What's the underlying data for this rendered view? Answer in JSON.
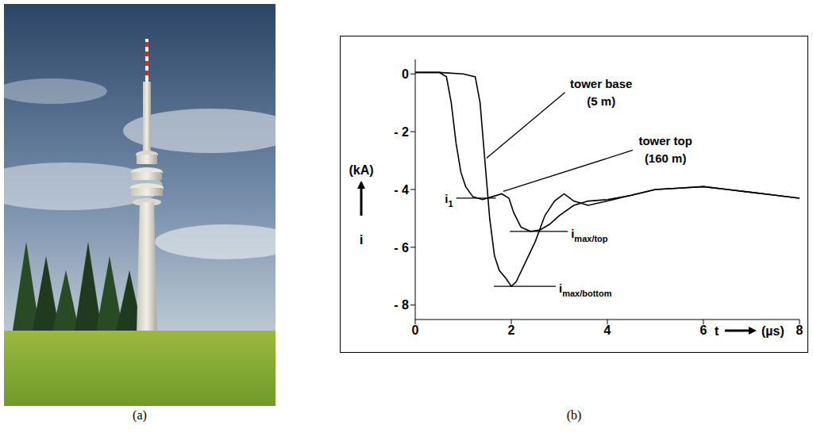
{
  "captions": [
    "(a)",
    "(b)"
  ],
  "chart_data": {
    "type": "line",
    "xlabel": "t",
    "xunit": "(µs)",
    "ylabel": "i",
    "yunit": "(kA)",
    "xlim": [
      0,
      8
    ],
    "xticks": [
      0,
      2,
      4,
      6,
      8
    ],
    "ylim": [
      -8.5,
      0.5
    ],
    "yticks": [
      0,
      {
        "value": -2,
        "label": "- 2"
      },
      {
        "value": -4,
        "label": "- 4"
      },
      {
        "value": -6,
        "label": "- 6"
      },
      {
        "value": -8,
        "label": "- 8"
      }
    ],
    "grid": false,
    "series": [
      {
        "name": "tower base (5 m)",
        "color": "#000000",
        "x": [
          0,
          0.5,
          1.0,
          1.25,
          1.35,
          1.45,
          1.55,
          1.65,
          1.75,
          1.9,
          2.0,
          2.1,
          2.3,
          2.5,
          2.7,
          2.9,
          3.1,
          3.3,
          3.6,
          4.0,
          4.5,
          5.0,
          5.5,
          6.0,
          6.5,
          7.0,
          7.5,
          8.0
        ],
        "values": [
          0.05,
          0.05,
          0.0,
          -0.1,
          -1.0,
          -3.0,
          -5.0,
          -6.3,
          -6.8,
          -7.1,
          -7.35,
          -7.2,
          -6.5,
          -5.8,
          -4.9,
          -4.4,
          -4.15,
          -4.4,
          -4.55,
          -4.4,
          -4.2,
          -4.0,
          -3.95,
          -3.9,
          -4.0,
          -4.1,
          -4.2,
          -4.3
        ]
      },
      {
        "name": "tower top (160 m)",
        "color": "#000000",
        "x": [
          0,
          0.5,
          0.65,
          0.75,
          0.85,
          0.95,
          1.05,
          1.2,
          1.4,
          1.6,
          1.8,
          1.95,
          2.05,
          2.2,
          2.4,
          2.6,
          2.8,
          3.0,
          3.3,
          3.6,
          4.0,
          4.5,
          5.0,
          5.5,
          6.0,
          6.5,
          7.0,
          7.5,
          8.0
        ],
        "values": [
          0.05,
          0.05,
          -0.1,
          -1.0,
          -2.4,
          -3.4,
          -3.9,
          -4.25,
          -4.35,
          -4.25,
          -4.15,
          -4.3,
          -4.8,
          -5.3,
          -5.45,
          -5.4,
          -5.2,
          -4.9,
          -4.55,
          -4.4,
          -4.35,
          -4.2,
          -4.0,
          -3.95,
          -3.9,
          -4.0,
          -4.1,
          -4.2,
          -4.3
        ]
      }
    ],
    "annotations": [
      {
        "text": "i",
        "sub": "1",
        "x": 1.3,
        "y": -4.3
      },
      {
        "text": "i",
        "sub": "max/top",
        "x": 2.4,
        "y": -5.45
      },
      {
        "text": "i",
        "sub": "max/bottom",
        "x": 2.0,
        "y": -7.35
      }
    ]
  }
}
